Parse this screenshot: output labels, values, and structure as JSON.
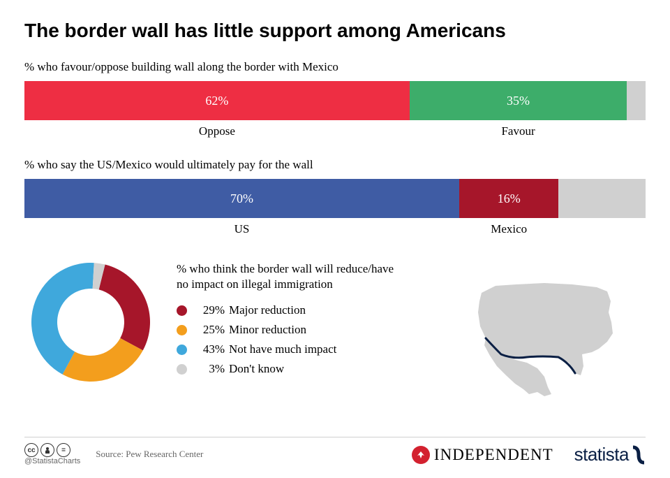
{
  "title": "The border wall has little support among Americans",
  "chart1": {
    "label": "% who favour/oppose building wall along the border with Mexico",
    "segments": [
      {
        "value": 62,
        "text": "62%",
        "label": "Oppose",
        "color": "#ee2e43"
      },
      {
        "value": 35,
        "text": "35%",
        "label": "Favour",
        "color": "#3dad6a"
      },
      {
        "value": 3,
        "text": "",
        "label": "",
        "color": "#d0d0d0"
      }
    ]
  },
  "chart2": {
    "label": "% who say the US/Mexico would ultimately pay for the wall",
    "segments": [
      {
        "value": 70,
        "text": "70%",
        "label": "US",
        "color": "#3f5ca4"
      },
      {
        "value": 16,
        "text": "16%",
        "label": "Mexico",
        "color": "#a6162a"
      },
      {
        "value": 14,
        "text": "",
        "label": "",
        "color": "#d0d0d0"
      }
    ]
  },
  "donut": {
    "title": "% who think the border wall will reduce/have no impact on illegal immigration",
    "items": [
      {
        "pct": "29%",
        "label": "Major reduction",
        "color": "#a6162a",
        "value": 29
      },
      {
        "pct": "25%",
        "label": "Minor reduction",
        "color": "#f39e1d",
        "value": 25
      },
      {
        "pct": "43%",
        "label": "Not have much impact",
        "color": "#3fa8dc",
        "value": 43
      },
      {
        "pct": "3%",
        "label": "Don't know",
        "color": "#d0d0d0",
        "value": 3
      }
    ]
  },
  "footer": {
    "handle": "@StatistaCharts",
    "source": "Source: Pew Research Center",
    "independent": "INDEPENDENT",
    "statista": "statista"
  },
  "map": {
    "fill": "#d0d0d0",
    "border_color": "#0a1f44"
  }
}
